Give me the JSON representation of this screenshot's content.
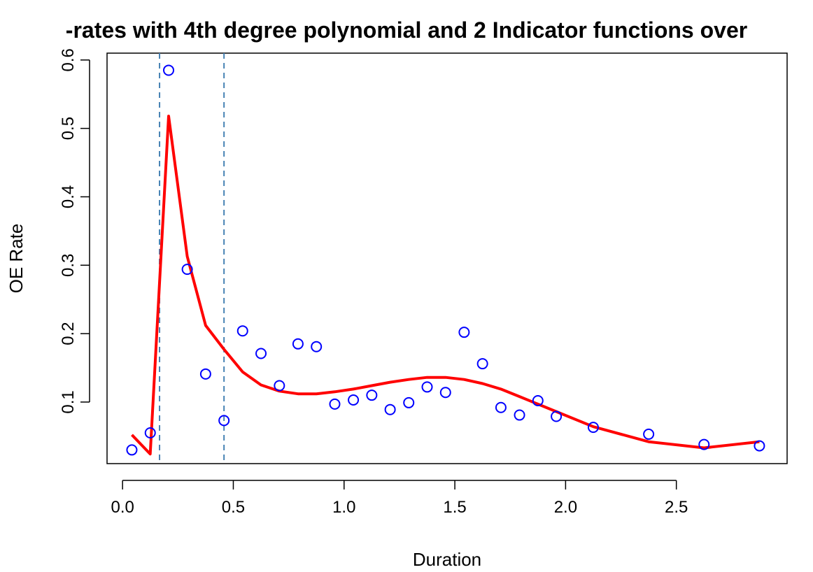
{
  "chart_data": {
    "type": "scatter",
    "title": "-rates with 4th degree polynomial and 2 Indicator functions over",
    "xlabel": "Duration",
    "ylabel": "OE Rate",
    "xlim": [
      -0.07,
      3.0
    ],
    "ylim": [
      0.01,
      0.61
    ],
    "xticks": [
      0.0,
      0.5,
      1.0,
      1.5,
      2.0,
      2.5
    ],
    "xtick_labels": [
      "0.0",
      "0.5",
      "1.0",
      "1.5",
      "2.0",
      "2.5"
    ],
    "yticks": [
      0.1,
      0.2,
      0.3,
      0.4,
      0.5,
      0.6
    ],
    "ytick_labels": [
      "0.1",
      "0.2",
      "0.3",
      "0.4",
      "0.5",
      "0.6"
    ],
    "grid": false,
    "colors": {
      "points": "#0000ff",
      "fit_line": "#ff0000",
      "vlines": "#4682b4"
    },
    "vlines": [
      0.167,
      0.458
    ],
    "points": {
      "x": [
        0.042,
        0.125,
        0.208,
        0.292,
        0.375,
        0.458,
        0.542,
        0.625,
        0.708,
        0.792,
        0.875,
        0.958,
        1.042,
        1.125,
        1.208,
        1.292,
        1.375,
        1.458,
        1.542,
        1.625,
        1.708,
        1.792,
        1.875,
        1.958,
        2.125,
        2.375,
        2.625,
        2.875
      ],
      "y": [
        0.03,
        0.055,
        0.585,
        0.294,
        0.141,
        0.073,
        0.204,
        0.171,
        0.124,
        0.185,
        0.181,
        0.097,
        0.103,
        0.11,
        0.089,
        0.099,
        0.122,
        0.114,
        0.202,
        0.156,
        0.092,
        0.081,
        0.102,
        0.079,
        0.063,
        0.053,
        0.038,
        0.036
      ]
    },
    "fit_line": {
      "x": [
        0.042,
        0.125,
        0.208,
        0.292,
        0.375,
        0.458,
        0.542,
        0.625,
        0.708,
        0.792,
        0.875,
        0.958,
        1.042,
        1.125,
        1.208,
        1.292,
        1.375,
        1.458,
        1.542,
        1.625,
        1.708,
        1.792,
        1.875,
        1.958,
        2.125,
        2.375,
        2.625,
        2.875
      ],
      "y": [
        0.052,
        0.024,
        0.518,
        0.313,
        0.212,
        0.177,
        0.144,
        0.125,
        0.116,
        0.112,
        0.112,
        0.115,
        0.119,
        0.124,
        0.129,
        0.133,
        0.136,
        0.136,
        0.133,
        0.127,
        0.119,
        0.108,
        0.097,
        0.086,
        0.064,
        0.042,
        0.033,
        0.042
      ]
    }
  }
}
